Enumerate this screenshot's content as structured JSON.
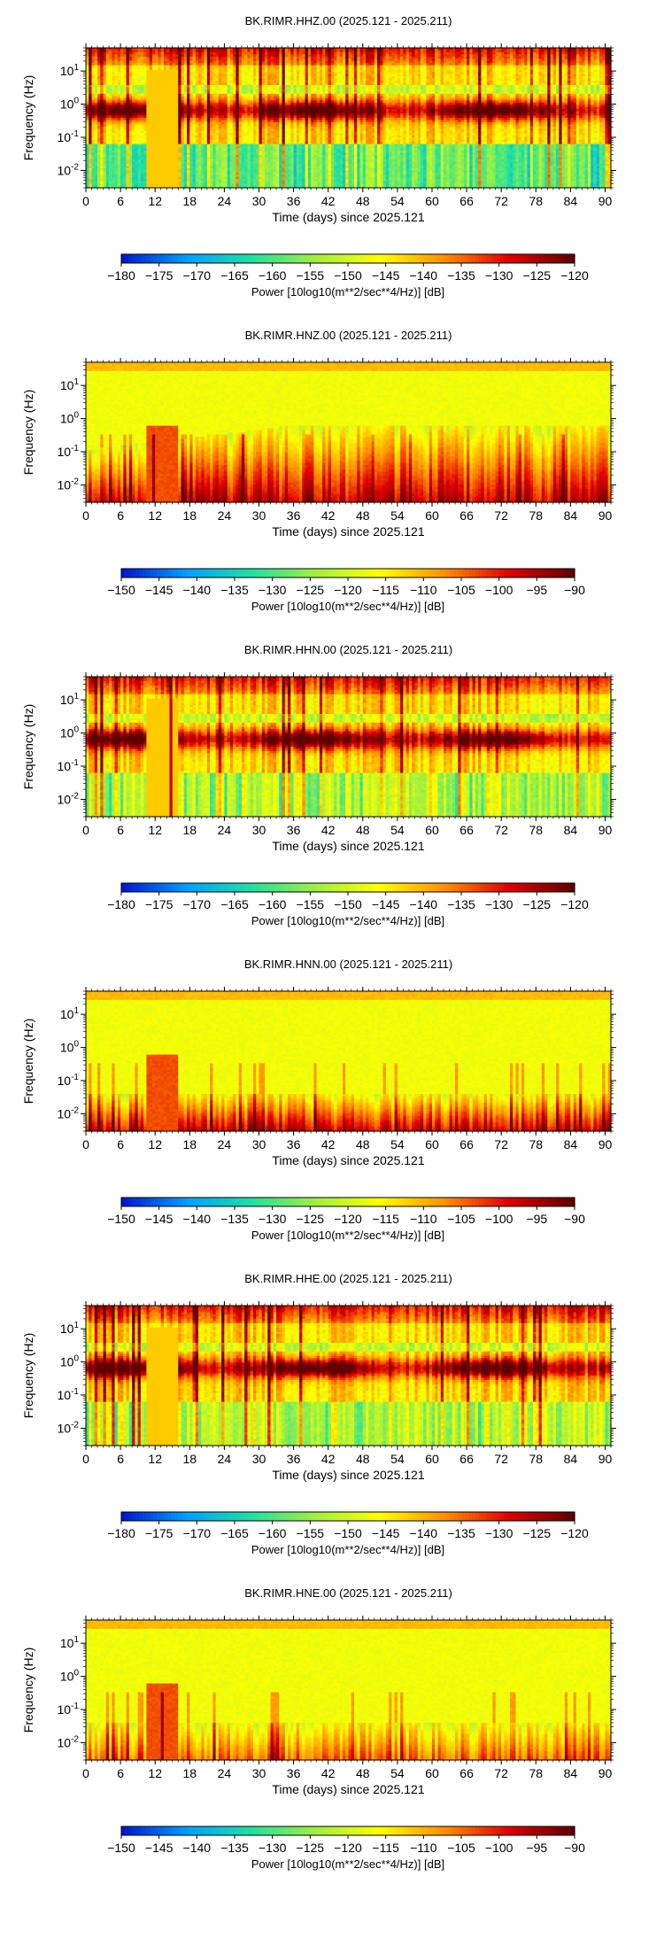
{
  "chart_data": [
    {
      "type": "heatmap",
      "title": "BK.RIMR.HHZ.00 (2025.121 - 2025.211)",
      "xlabel": "Time (days) since 2025.121",
      "ylabel": "Frequency (Hz)",
      "x_ticks": [
        "0",
        "6",
        "12",
        "18",
        "24",
        "30",
        "36",
        "42",
        "48",
        "54",
        "60",
        "66",
        "72",
        "78",
        "84",
        "90"
      ],
      "y_ticks": [
        "10^1",
        "10^0",
        "10^-1",
        "10^-2"
      ],
      "xlim": [
        0,
        91
      ],
      "ylim_hz": [
        0.003,
        50
      ],
      "y_scale": "log",
      "pattern": "microseism",
      "colorbar": {
        "label": "Power [10log10(m**2/sec**4/Hz)] [dB]",
        "range": [
          -180,
          -120
        ],
        "ticks": [
          "-180",
          "-175",
          "-170",
          "-165",
          "-160",
          "-155",
          "-150",
          "-145",
          "-140",
          "-135",
          "-130",
          "-125",
          "-120"
        ],
        "colors": [
          "#0018d0",
          "#00a0ff",
          "#20e0a0",
          "#a0f040",
          "#ffff00",
          "#ff9000",
          "#e00000",
          "#600000"
        ]
      }
    },
    {
      "type": "heatmap",
      "title": "BK.RIMR.HNZ.00 (2025.121 - 2025.211)",
      "xlabel": "Time (days) since 2025.121",
      "ylabel": "Frequency (Hz)",
      "x_ticks": [
        "0",
        "6",
        "12",
        "18",
        "24",
        "30",
        "36",
        "42",
        "48",
        "54",
        "60",
        "66",
        "72",
        "78",
        "84",
        "90"
      ],
      "y_ticks": [
        "10^1",
        "10^0",
        "10^-1",
        "10^-2"
      ],
      "xlim": [
        0,
        91
      ],
      "ylim_hz": [
        0.003,
        50
      ],
      "y_scale": "log",
      "pattern": "strongmotion",
      "colorbar": {
        "label": "Power [10log10(m**2/sec**4/Hz)] [dB]",
        "range": [
          -150,
          -90
        ],
        "ticks": [
          "-150",
          "-145",
          "-140",
          "-135",
          "-130",
          "-125",
          "-120",
          "-115",
          "-110",
          "-105",
          "-100",
          "-95",
          "-90"
        ],
        "colors": [
          "#0018d0",
          "#00a0ff",
          "#20e0a0",
          "#a0f040",
          "#ffff00",
          "#ff9000",
          "#e00000",
          "#600000"
        ]
      }
    },
    {
      "type": "heatmap",
      "title": "BK.RIMR.HHN.00 (2025.121 - 2025.211)",
      "xlabel": "Time (days) since 2025.121",
      "ylabel": "Frequency (Hz)",
      "x_ticks": [
        "0",
        "6",
        "12",
        "18",
        "24",
        "30",
        "36",
        "42",
        "48",
        "54",
        "60",
        "66",
        "72",
        "78",
        "84",
        "90"
      ],
      "y_ticks": [
        "10^1",
        "10^0",
        "10^-1",
        "10^-2"
      ],
      "xlim": [
        0,
        91
      ],
      "ylim_hz": [
        0.003,
        50
      ],
      "y_scale": "log",
      "pattern": "microseism-h",
      "colorbar": {
        "label": "Power [10log10(m**2/sec**4/Hz)] [dB]",
        "range": [
          -180,
          -120
        ],
        "ticks": [
          "-180",
          "-175",
          "-170",
          "-165",
          "-160",
          "-155",
          "-150",
          "-145",
          "-140",
          "-135",
          "-130",
          "-125",
          "-120"
        ],
        "colors": [
          "#0018d0",
          "#00a0ff",
          "#20e0a0",
          "#a0f040",
          "#ffff00",
          "#ff9000",
          "#e00000",
          "#600000"
        ]
      }
    },
    {
      "type": "heatmap",
      "title": "BK.RIMR.HNN.00 (2025.121 - 2025.211)",
      "xlabel": "Time (days) since 2025.121",
      "ylabel": "Frequency (Hz)",
      "x_ticks": [
        "0",
        "6",
        "12",
        "18",
        "24",
        "30",
        "36",
        "42",
        "48",
        "54",
        "60",
        "66",
        "72",
        "78",
        "84",
        "90"
      ],
      "y_ticks": [
        "10^1",
        "10^0",
        "10^-1",
        "10^-2"
      ],
      "xlim": [
        0,
        91
      ],
      "ylim_hz": [
        0.003,
        50
      ],
      "y_scale": "log",
      "pattern": "strongmotion-h",
      "colorbar": {
        "label": "Power [10log10(m**2/sec**4/Hz)] [dB]",
        "range": [
          -150,
          -90
        ],
        "ticks": [
          "-150",
          "-145",
          "-140",
          "-135",
          "-130",
          "-125",
          "-120",
          "-115",
          "-110",
          "-105",
          "-100",
          "-95",
          "-90"
        ],
        "colors": [
          "#0018d0",
          "#00a0ff",
          "#20e0a0",
          "#a0f040",
          "#ffff00",
          "#ff9000",
          "#e00000",
          "#600000"
        ]
      }
    },
    {
      "type": "heatmap",
      "title": "BK.RIMR.HHE.00 (2025.121 - 2025.211)",
      "xlabel": "Time (days) since 2025.121",
      "ylabel": "Frequency (Hz)",
      "x_ticks": [
        "0",
        "6",
        "12",
        "18",
        "24",
        "30",
        "36",
        "42",
        "48",
        "54",
        "60",
        "66",
        "72",
        "78",
        "84",
        "90"
      ],
      "y_ticks": [
        "10^1",
        "10^0",
        "10^-1",
        "10^-2"
      ],
      "xlim": [
        0,
        91
      ],
      "ylim_hz": [
        0.003,
        50
      ],
      "y_scale": "log",
      "pattern": "microseism-h",
      "colorbar": {
        "label": "Power [10log10(m**2/sec**4/Hz)] [dB]",
        "range": [
          -180,
          -120
        ],
        "ticks": [
          "-180",
          "-175",
          "-170",
          "-165",
          "-160",
          "-155",
          "-150",
          "-145",
          "-140",
          "-135",
          "-130",
          "-125",
          "-120"
        ],
        "colors": [
          "#0018d0",
          "#00a0ff",
          "#20e0a0",
          "#a0f040",
          "#ffff00",
          "#ff9000",
          "#e00000",
          "#600000"
        ]
      }
    },
    {
      "type": "heatmap",
      "title": "BK.RIMR.HNE.00 (2025.121 - 2025.211)",
      "xlabel": "Time (days) since 2025.121",
      "ylabel": "Frequency (Hz)",
      "x_ticks": [
        "0",
        "6",
        "12",
        "18",
        "24",
        "30",
        "36",
        "42",
        "48",
        "54",
        "60",
        "66",
        "72",
        "78",
        "84",
        "90"
      ],
      "y_ticks": [
        "10^1",
        "10^0",
        "10^-1",
        "10^-2"
      ],
      "xlim": [
        0,
        91
      ],
      "ylim_hz": [
        0.003,
        50
      ],
      "y_scale": "log",
      "pattern": "strongmotion-light",
      "colorbar": {
        "label": "Power [10log10(m**2/sec**4/Hz)] [dB]",
        "range": [
          -150,
          -90
        ],
        "ticks": [
          "-150",
          "-145",
          "-140",
          "-135",
          "-130",
          "-125",
          "-120",
          "-115",
          "-110",
          "-105",
          "-100",
          "-95",
          "-90"
        ],
        "colors": [
          "#0018d0",
          "#00a0ff",
          "#20e0a0",
          "#a0f040",
          "#ffff00",
          "#ff9000",
          "#e00000",
          "#600000"
        ]
      }
    }
  ]
}
